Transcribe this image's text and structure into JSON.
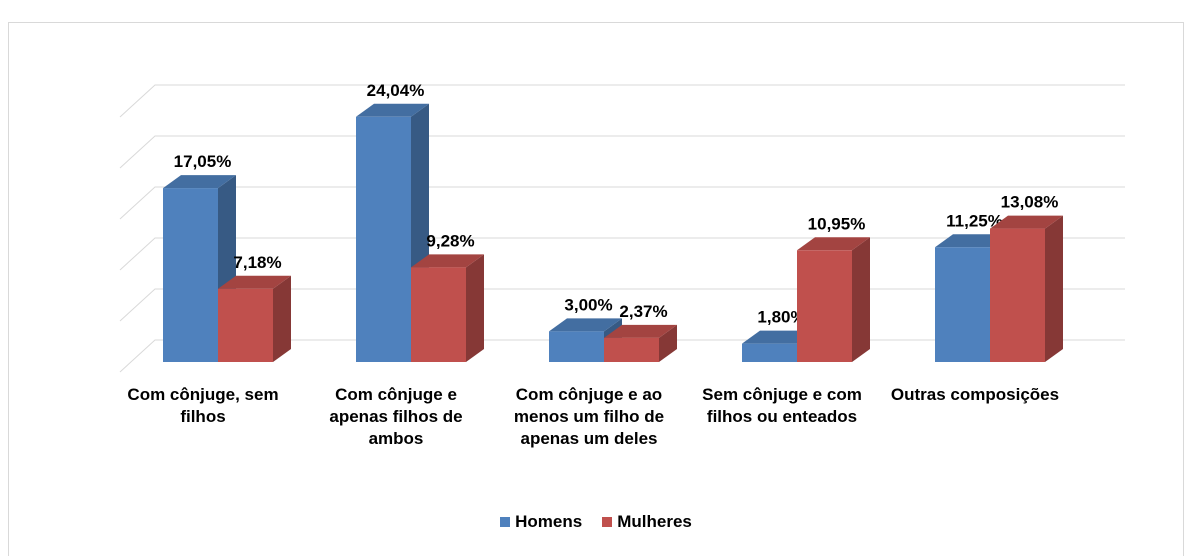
{
  "chart_data": {
    "type": "bar3d",
    "categories": [
      "Com cônjuge, sem filhos",
      "Com cônjuge e apenas filhos de ambos",
      "Com cônjuge e ao menos um filho de apenas um deles",
      "Sem cônjuge e com filhos ou enteados",
      "Outras composições"
    ],
    "series": [
      {
        "name": "Homens",
        "color": "#4f81bd",
        "values": [
          17.05,
          24.04,
          3.0,
          1.8,
          11.25
        ],
        "value_labels": [
          "17,05%",
          "24,04%",
          "3,00%",
          "1,80%",
          "11,25%"
        ]
      },
      {
        "name": "Mulheres",
        "color": "#c0504d",
        "values": [
          7.18,
          9.28,
          2.37,
          10.95,
          13.08
        ],
        "value_labels": [
          "7,18%",
          "9,28%",
          "2,37%",
          "10,95%",
          "13,08%"
        ]
      }
    ],
    "ylim": [
      0,
      25
    ],
    "yticks": [
      0,
      5,
      10,
      15,
      20,
      25
    ],
    "grid": true,
    "legend": "bottom"
  }
}
